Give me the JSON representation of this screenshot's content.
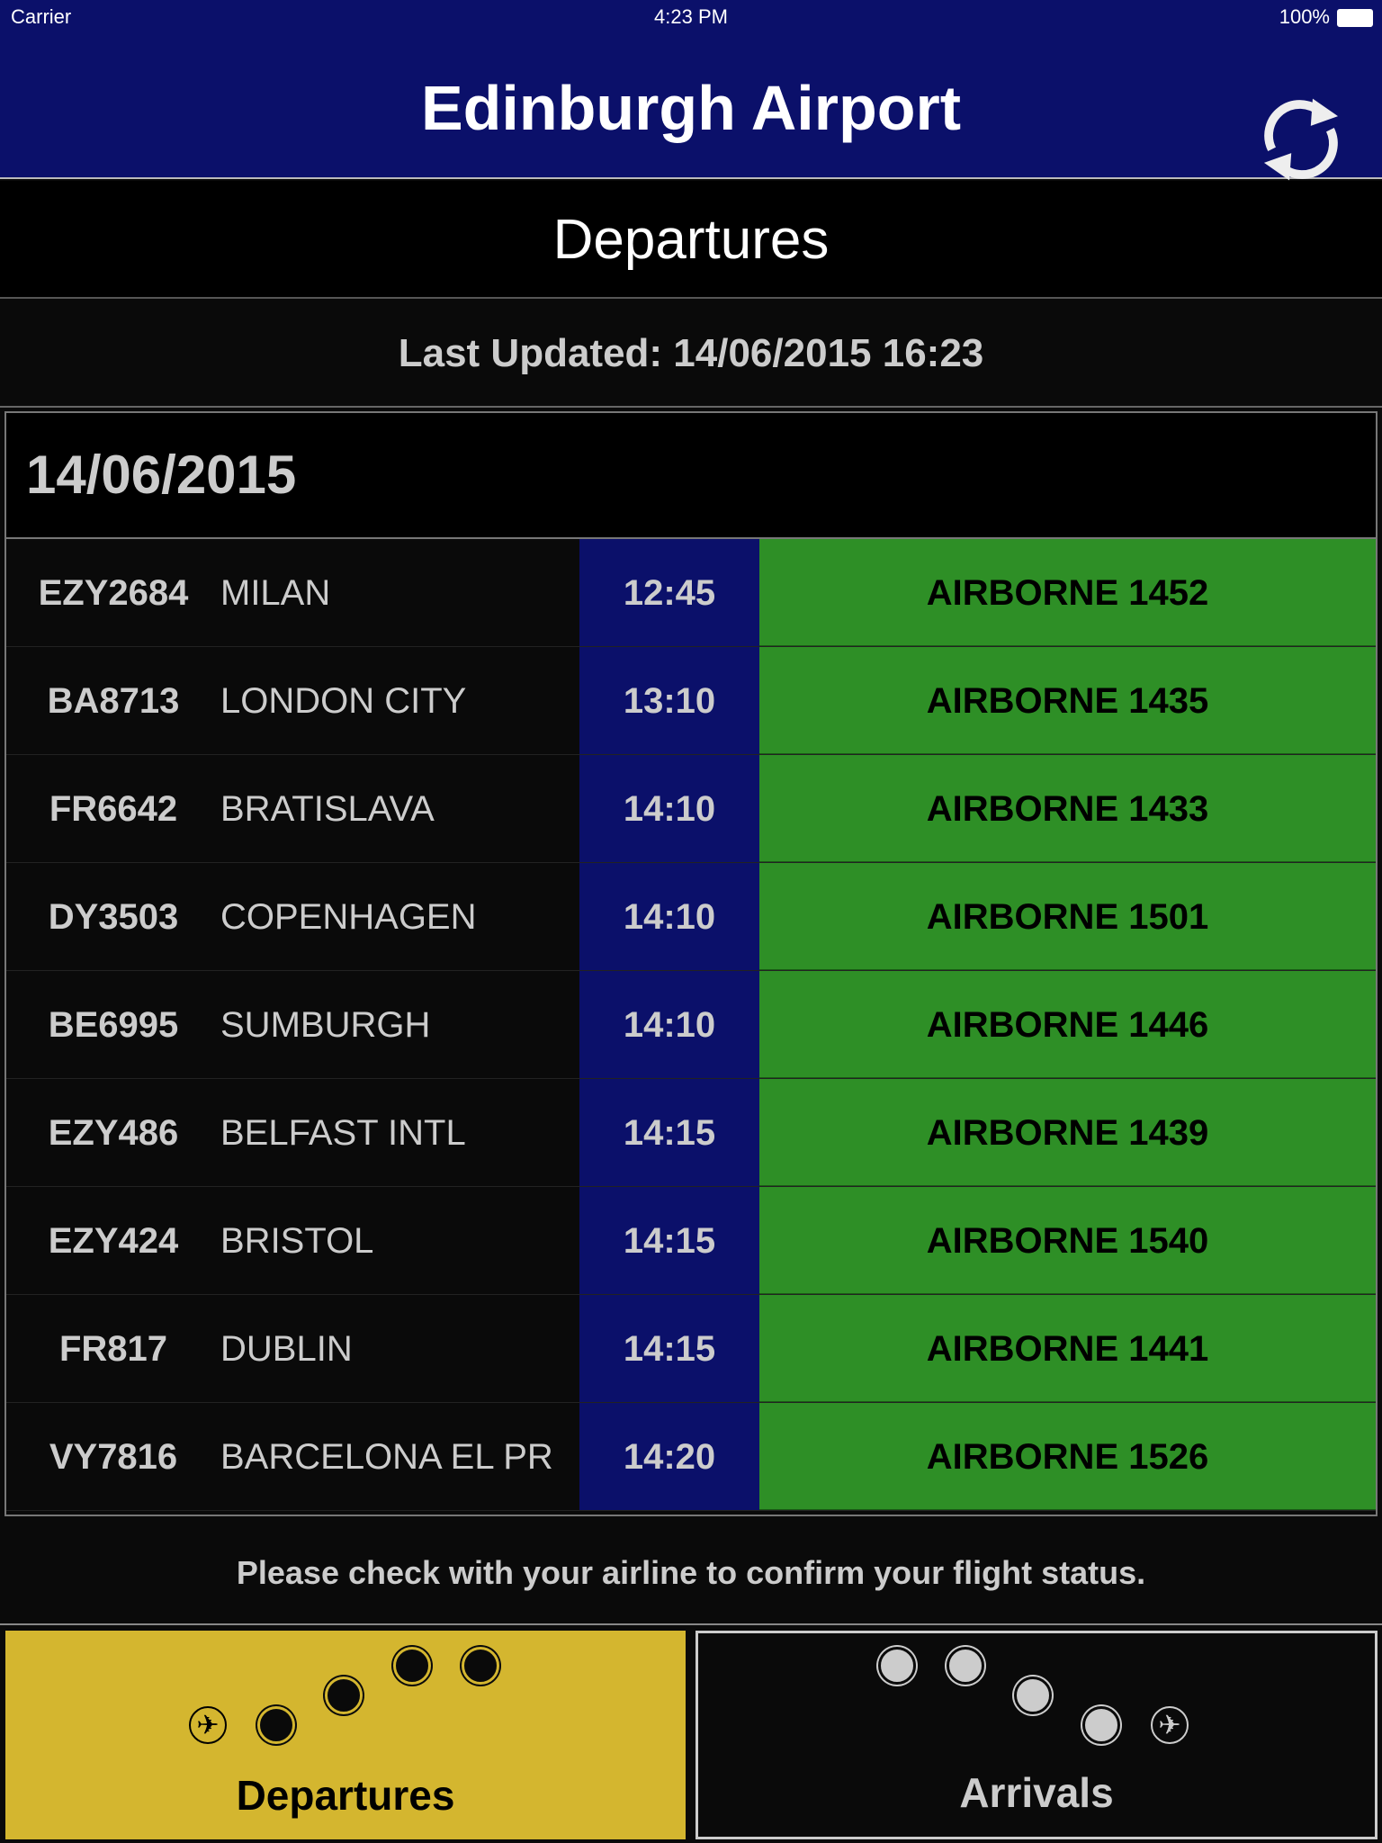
{
  "status_bar": {
    "carrier": "Carrier",
    "time": "4:23 PM",
    "battery": "100%"
  },
  "header": {
    "title": "Edinburgh Airport",
    "refresh_icon": "refresh-icon"
  },
  "section_title": "Departures",
  "last_updated": "Last Updated: 14/06/2015 16:23",
  "board": {
    "date": "14/06/2015",
    "flights": [
      {
        "code": "EZY2684",
        "destination": "MILAN",
        "time": "12:45",
        "status": "AIRBORNE 1452"
      },
      {
        "code": "BA8713",
        "destination": "LONDON CITY",
        "time": "13:10",
        "status": "AIRBORNE 1435"
      },
      {
        "code": "FR6642",
        "destination": "BRATISLAVA",
        "time": "14:10",
        "status": "AIRBORNE 1433"
      },
      {
        "code": "DY3503",
        "destination": "COPENHAGEN",
        "time": "14:10",
        "status": "AIRBORNE 1501"
      },
      {
        "code": "BE6995",
        "destination": "SUMBURGH",
        "time": "14:10",
        "status": "AIRBORNE 1446"
      },
      {
        "code": "EZY486",
        "destination": "BELFAST INTL",
        "time": "14:15",
        "status": "AIRBORNE 1439"
      },
      {
        "code": "EZY424",
        "destination": "BRISTOL",
        "time": "14:15",
        "status": "AIRBORNE 1540"
      },
      {
        "code": "FR817",
        "destination": "DUBLIN",
        "time": "14:15",
        "status": "AIRBORNE 1441"
      },
      {
        "code": "VY7816",
        "destination": "BARCELONA EL PR",
        "time": "14:20",
        "status": "AIRBORNE 1526"
      }
    ]
  },
  "note": "Please check with your airline to confirm your flight status.",
  "tabs": {
    "departures": "Departures",
    "arrivals": "Arrivals",
    "active": "departures"
  },
  "colors": {
    "header": "#0b106a",
    "status_airborne": "#2e8f26",
    "active_tab": "#d4b62f"
  }
}
